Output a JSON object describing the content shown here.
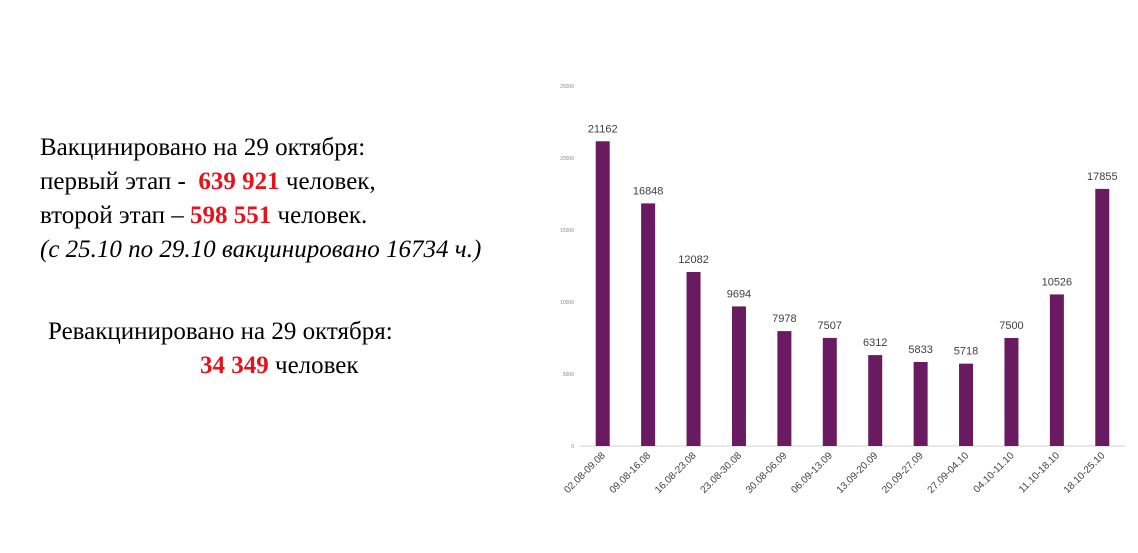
{
  "vaccinated": {
    "heading": "Вакцинировано на 29 октября:",
    "first_prefix": "первый этап -",
    "first_value": "639 921",
    "first_suffix": "человек,",
    "second_prefix": "второй этап –",
    "second_value": "598 551",
    "second_suffix": "человек.",
    "note": "(с 25.10 по 29.10 вакцинировано 16734 ч.)"
  },
  "revaccinated": {
    "heading": "Ревакцинировано на 29 октября:",
    "value": "34 349",
    "suffix": "человек"
  },
  "colors": {
    "bar": "#6a1a61",
    "highlight": "#e8111b"
  },
  "chart_data": {
    "type": "bar",
    "title": "",
    "xlabel": "",
    "ylabel": "",
    "ylim": [
      0,
      25000
    ],
    "yticks": [
      0,
      5000,
      10000,
      15000,
      20000,
      25000
    ],
    "grid": false,
    "categories": [
      "02.08-09.08",
      "09.08-16.08",
      "16.08-23.08",
      "23.08-30.08",
      "30.08-06.09",
      "06.09-13.09",
      "13.09-20.09",
      "20.09-27.09",
      "27.09-04.10",
      "04.10-11.10",
      "11.10-18.10",
      "18.10-25.10"
    ],
    "values": [
      21162,
      16848,
      12082,
      9694,
      7978,
      7507,
      6312,
      5833,
      5718,
      7500,
      10526,
      17855
    ]
  }
}
